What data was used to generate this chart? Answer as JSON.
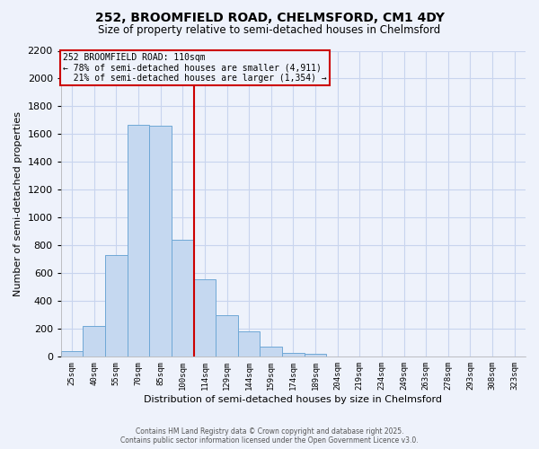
{
  "title": "252, BROOMFIELD ROAD, CHELMSFORD, CM1 4DY",
  "subtitle": "Size of property relative to semi-detached houses in Chelmsford",
  "xlabel": "Distribution of semi-detached houses by size in Chelmsford",
  "ylabel": "Number of semi-detached properties",
  "bin_labels": [
    "25sqm",
    "40sqm",
    "55sqm",
    "70sqm",
    "85sqm",
    "100sqm",
    "114sqm",
    "129sqm",
    "144sqm",
    "159sqm",
    "174sqm",
    "189sqm",
    "204sqm",
    "219sqm",
    "234sqm",
    "249sqm",
    "263sqm",
    "278sqm",
    "293sqm",
    "308sqm",
    "323sqm"
  ],
  "bar_heights": [
    40,
    220,
    730,
    1670,
    1660,
    840,
    560,
    300,
    180,
    70,
    30,
    20,
    0,
    0,
    0,
    0,
    0,
    0,
    0,
    0,
    0
  ],
  "bar_color": "#c5d8f0",
  "bar_edge_color": "#6fa8d6",
  "property_line_x": 5.5,
  "pct_smaller": "78%",
  "pct_smaller_count": "4,911",
  "pct_larger": "21%",
  "pct_larger_count": "1,354",
  "annotation_box_color": "#cc0000",
  "ylim": [
    0,
    2200
  ],
  "yticks": [
    0,
    200,
    400,
    600,
    800,
    1000,
    1200,
    1400,
    1600,
    1800,
    2000,
    2200
  ],
  "footnote1": "Contains HM Land Registry data © Crown copyright and database right 2025.",
  "footnote2": "Contains public sector information licensed under the Open Government Licence v3.0.",
  "background_color": "#eef2fb",
  "grid_color": "#c8d4ee"
}
